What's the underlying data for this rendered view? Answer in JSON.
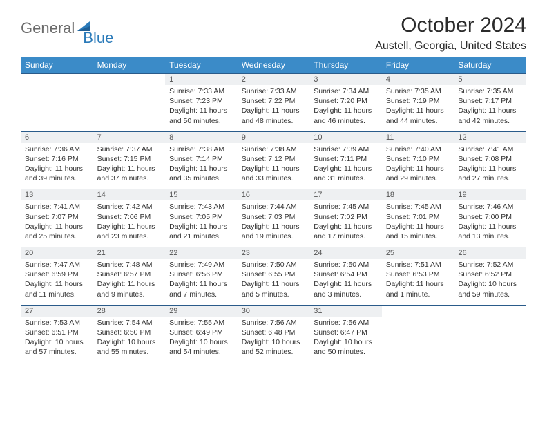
{
  "logo": {
    "text1": "General",
    "text2": "Blue"
  },
  "title": "October 2024",
  "location": "Austell, Georgia, United States",
  "days_of_week": [
    "Sunday",
    "Monday",
    "Tuesday",
    "Wednesday",
    "Thursday",
    "Friday",
    "Saturday"
  ],
  "colors": {
    "header_bg": "#3b8bc8",
    "daynum_bg": "#eef0f2",
    "border": "#2a5b8a",
    "logo_gray": "#6b6b6b",
    "logo_blue": "#2a7ab9"
  },
  "weeks": [
    [
      null,
      null,
      {
        "n": "1",
        "sunrise": "Sunrise: 7:33 AM",
        "sunset": "Sunset: 7:23 PM",
        "daylight": "Daylight: 11 hours and 50 minutes."
      },
      {
        "n": "2",
        "sunrise": "Sunrise: 7:33 AM",
        "sunset": "Sunset: 7:22 PM",
        "daylight": "Daylight: 11 hours and 48 minutes."
      },
      {
        "n": "3",
        "sunrise": "Sunrise: 7:34 AM",
        "sunset": "Sunset: 7:20 PM",
        "daylight": "Daylight: 11 hours and 46 minutes."
      },
      {
        "n": "4",
        "sunrise": "Sunrise: 7:35 AM",
        "sunset": "Sunset: 7:19 PM",
        "daylight": "Daylight: 11 hours and 44 minutes."
      },
      {
        "n": "5",
        "sunrise": "Sunrise: 7:35 AM",
        "sunset": "Sunset: 7:17 PM",
        "daylight": "Daylight: 11 hours and 42 minutes."
      }
    ],
    [
      {
        "n": "6",
        "sunrise": "Sunrise: 7:36 AM",
        "sunset": "Sunset: 7:16 PM",
        "daylight": "Daylight: 11 hours and 39 minutes."
      },
      {
        "n": "7",
        "sunrise": "Sunrise: 7:37 AM",
        "sunset": "Sunset: 7:15 PM",
        "daylight": "Daylight: 11 hours and 37 minutes."
      },
      {
        "n": "8",
        "sunrise": "Sunrise: 7:38 AM",
        "sunset": "Sunset: 7:14 PM",
        "daylight": "Daylight: 11 hours and 35 minutes."
      },
      {
        "n": "9",
        "sunrise": "Sunrise: 7:38 AM",
        "sunset": "Sunset: 7:12 PM",
        "daylight": "Daylight: 11 hours and 33 minutes."
      },
      {
        "n": "10",
        "sunrise": "Sunrise: 7:39 AM",
        "sunset": "Sunset: 7:11 PM",
        "daylight": "Daylight: 11 hours and 31 minutes."
      },
      {
        "n": "11",
        "sunrise": "Sunrise: 7:40 AM",
        "sunset": "Sunset: 7:10 PM",
        "daylight": "Daylight: 11 hours and 29 minutes."
      },
      {
        "n": "12",
        "sunrise": "Sunrise: 7:41 AM",
        "sunset": "Sunset: 7:08 PM",
        "daylight": "Daylight: 11 hours and 27 minutes."
      }
    ],
    [
      {
        "n": "13",
        "sunrise": "Sunrise: 7:41 AM",
        "sunset": "Sunset: 7:07 PM",
        "daylight": "Daylight: 11 hours and 25 minutes."
      },
      {
        "n": "14",
        "sunrise": "Sunrise: 7:42 AM",
        "sunset": "Sunset: 7:06 PM",
        "daylight": "Daylight: 11 hours and 23 minutes."
      },
      {
        "n": "15",
        "sunrise": "Sunrise: 7:43 AM",
        "sunset": "Sunset: 7:05 PM",
        "daylight": "Daylight: 11 hours and 21 minutes."
      },
      {
        "n": "16",
        "sunrise": "Sunrise: 7:44 AM",
        "sunset": "Sunset: 7:03 PM",
        "daylight": "Daylight: 11 hours and 19 minutes."
      },
      {
        "n": "17",
        "sunrise": "Sunrise: 7:45 AM",
        "sunset": "Sunset: 7:02 PM",
        "daylight": "Daylight: 11 hours and 17 minutes."
      },
      {
        "n": "18",
        "sunrise": "Sunrise: 7:45 AM",
        "sunset": "Sunset: 7:01 PM",
        "daylight": "Daylight: 11 hours and 15 minutes."
      },
      {
        "n": "19",
        "sunrise": "Sunrise: 7:46 AM",
        "sunset": "Sunset: 7:00 PM",
        "daylight": "Daylight: 11 hours and 13 minutes."
      }
    ],
    [
      {
        "n": "20",
        "sunrise": "Sunrise: 7:47 AM",
        "sunset": "Sunset: 6:59 PM",
        "daylight": "Daylight: 11 hours and 11 minutes."
      },
      {
        "n": "21",
        "sunrise": "Sunrise: 7:48 AM",
        "sunset": "Sunset: 6:57 PM",
        "daylight": "Daylight: 11 hours and 9 minutes."
      },
      {
        "n": "22",
        "sunrise": "Sunrise: 7:49 AM",
        "sunset": "Sunset: 6:56 PM",
        "daylight": "Daylight: 11 hours and 7 minutes."
      },
      {
        "n": "23",
        "sunrise": "Sunrise: 7:50 AM",
        "sunset": "Sunset: 6:55 PM",
        "daylight": "Daylight: 11 hours and 5 minutes."
      },
      {
        "n": "24",
        "sunrise": "Sunrise: 7:50 AM",
        "sunset": "Sunset: 6:54 PM",
        "daylight": "Daylight: 11 hours and 3 minutes."
      },
      {
        "n": "25",
        "sunrise": "Sunrise: 7:51 AM",
        "sunset": "Sunset: 6:53 PM",
        "daylight": "Daylight: 11 hours and 1 minute."
      },
      {
        "n": "26",
        "sunrise": "Sunrise: 7:52 AM",
        "sunset": "Sunset: 6:52 PM",
        "daylight": "Daylight: 10 hours and 59 minutes."
      }
    ],
    [
      {
        "n": "27",
        "sunrise": "Sunrise: 7:53 AM",
        "sunset": "Sunset: 6:51 PM",
        "daylight": "Daylight: 10 hours and 57 minutes."
      },
      {
        "n": "28",
        "sunrise": "Sunrise: 7:54 AM",
        "sunset": "Sunset: 6:50 PM",
        "daylight": "Daylight: 10 hours and 55 minutes."
      },
      {
        "n": "29",
        "sunrise": "Sunrise: 7:55 AM",
        "sunset": "Sunset: 6:49 PM",
        "daylight": "Daylight: 10 hours and 54 minutes."
      },
      {
        "n": "30",
        "sunrise": "Sunrise: 7:56 AM",
        "sunset": "Sunset: 6:48 PM",
        "daylight": "Daylight: 10 hours and 52 minutes."
      },
      {
        "n": "31",
        "sunrise": "Sunrise: 7:56 AM",
        "sunset": "Sunset: 6:47 PM",
        "daylight": "Daylight: 10 hours and 50 minutes."
      },
      null,
      null
    ]
  ]
}
